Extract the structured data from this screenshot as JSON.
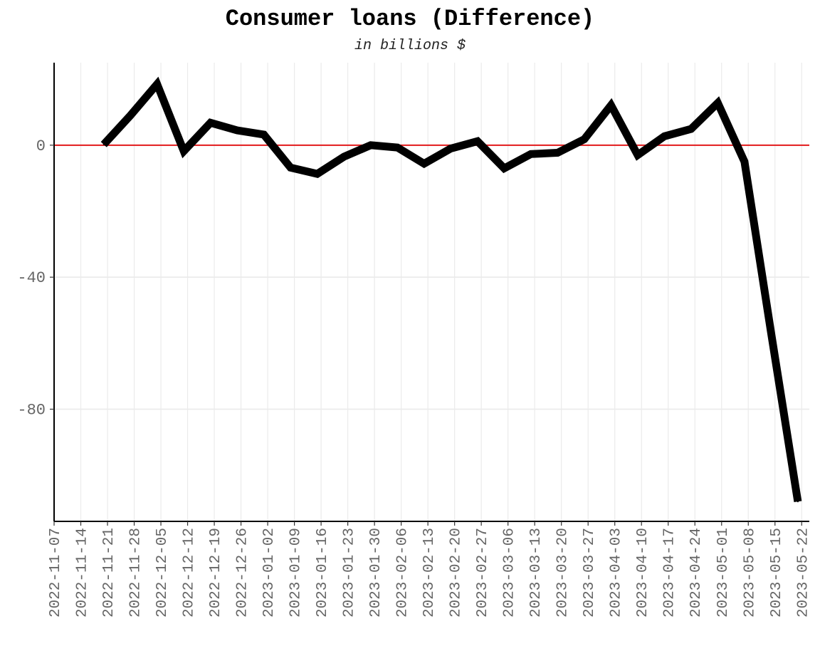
{
  "chart_data": {
    "type": "line",
    "title": "Consumer loans (Difference)",
    "subtitle": "in billions $",
    "xlabel": "",
    "ylabel": "",
    "x_ticks": [
      "2022-11-07",
      "2022-11-14",
      "2022-11-21",
      "2022-11-28",
      "2022-12-05",
      "2022-12-12",
      "2022-12-19",
      "2022-12-26",
      "2023-01-02",
      "2023-01-09",
      "2023-01-16",
      "2023-01-23",
      "2023-01-30",
      "2023-02-06",
      "2023-02-13",
      "2023-02-20",
      "2023-02-27",
      "2023-03-06",
      "2023-03-13",
      "2023-03-20",
      "2023-03-27",
      "2023-04-03",
      "2023-04-10",
      "2023-04-17",
      "2023-04-24",
      "2023-05-01",
      "2023-05-08",
      "2023-05-15",
      "2023-05-22"
    ],
    "y_ticks": [
      0,
      -40,
      -80
    ],
    "ylim": [
      -114,
      25
    ],
    "xlim": [
      "2022-11-07",
      "2023-05-24"
    ],
    "grid": true,
    "reference_line": {
      "y": 0,
      "color": "#e31a1c"
    },
    "series": [
      {
        "color": "#000000",
        "x": [
          "2022-11-20",
          "2022-11-27",
          "2022-12-04",
          "2022-12-11",
          "2022-12-18",
          "2022-12-25",
          "2023-01-01",
          "2023-01-08",
          "2023-01-15",
          "2023-01-22",
          "2023-01-29",
          "2023-02-05",
          "2023-02-12",
          "2023-02-19",
          "2023-02-26",
          "2023-03-05",
          "2023-03-12",
          "2023-03-19",
          "2023-03-26",
          "2023-04-02",
          "2023-04-09",
          "2023-04-16",
          "2023-04-23",
          "2023-04-30",
          "2023-05-07",
          "2023-05-14",
          "2023-05-21"
        ],
        "values": [
          0.2,
          9.0,
          18.5,
          -1.8,
          6.8,
          4.5,
          3.2,
          -6.8,
          -8.7,
          -3.5,
          0.0,
          -0.7,
          -5.6,
          -1.0,
          1.2,
          -7.0,
          -2.7,
          -2.3,
          1.8,
          12.1,
          -3.0,
          2.7,
          4.9,
          12.8,
          -5.0,
          -57.0,
          -108.0
        ]
      }
    ]
  }
}
